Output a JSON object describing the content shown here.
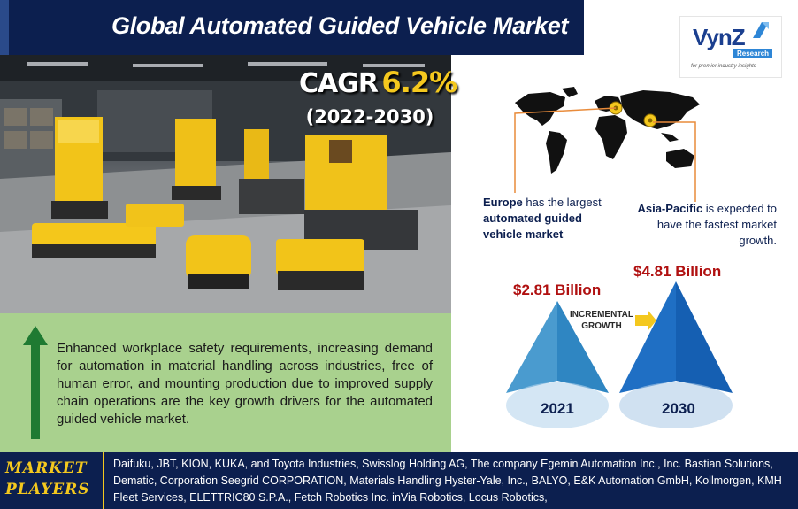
{
  "title": "Global Automated Guided Vehicle Market",
  "cagr": {
    "label": "CAGR",
    "value": "6.2%",
    "period": "(2022-2030)"
  },
  "logo": {
    "name": "VynZ",
    "badge": "Research",
    "tagline": "for premier industry insights"
  },
  "map": {
    "europe": {
      "highlight": "Europe",
      "rest_1": " has the largest ",
      "bold_2": "automated guided vehicle market"
    },
    "asia_pacific": {
      "highlight": "Asia-Pacific",
      "rest": " is expected to have the fastest market growth."
    }
  },
  "drivers": {
    "text": "Enhanced workplace safety requirements, increasing demand for automation in material handling across industries, free of human error, and mounting production due to improved supply chain operations are the key growth drivers for the automated guided vehicle market."
  },
  "market_values": {
    "year_2021": {
      "year": "2021",
      "value": "$2.81 Billion"
    },
    "year_2030": {
      "year": "2030",
      "value": "$4.81 Billion"
    },
    "incremental_line1": "INCREMENTAL",
    "incremental_line2": "GROWTH"
  },
  "players": {
    "label_line1": "MARKET",
    "label_line2": "PLAYERS",
    "text": "Daifuku, JBT, KION, KUKA, and Toyota Industries, Swisslog Holding AG, The company Egemin Automation Inc., Inc. Bastian Solutions, Dematic, Corporation Seegrid CORPORATION, Materials Handling Hyster-Yale, Inc., BALYO, E&K Automation GmbH, Kollmorgen, KMH Fleet Services, ELETTRIC80 S.P.A., Fetch Robotics Inc. inVia Robotics, Locus Robotics,"
  },
  "colors": {
    "navy": "#0c1f4f",
    "gold": "#f4c81e",
    "green_panel": "#a9d18e",
    "arrow_green": "#1f7a32",
    "value_red": "#b01010",
    "pyramid_blue_light": "#5aa8d8",
    "pyramid_blue_dark": "#1a5fb4"
  },
  "icons": [
    "location-pin-icon",
    "up-arrow-icon",
    "right-arrow-icon"
  ]
}
